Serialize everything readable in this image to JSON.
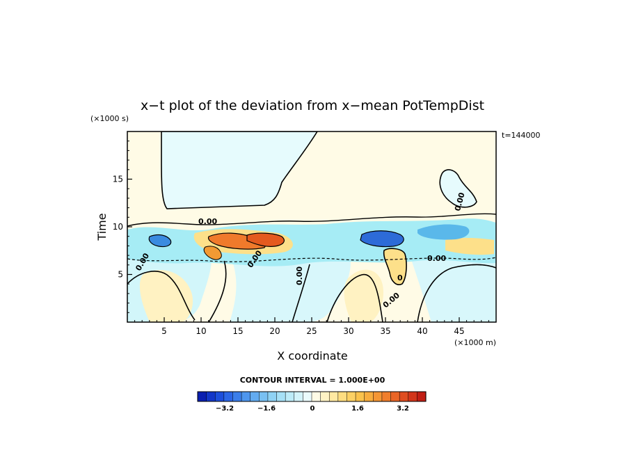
{
  "chart_data": {
    "type": "heatmap",
    "title": "x−t plot of the deviation from x−mean PotTempDist",
    "xlabel": "X coordinate",
    "ylabel": "Time",
    "x_unit": "(×1000 m)",
    "y_unit": "(×1000 s)",
    "time_stamp": "t=144000",
    "xlim": [
      0,
      50
    ],
    "ylim": [
      0,
      20
    ],
    "x_ticks": [
      5,
      10,
      15,
      20,
      25,
      30,
      35,
      40,
      45
    ],
    "y_ticks": [
      5,
      10,
      15
    ],
    "contour_interval_text": "CONTOUR INTERVAL = 1.000E+00",
    "contour_line_labels": [
      "0.00",
      "0.00",
      "0.00",
      "0.00",
      "0.00",
      "0.00",
      "0.00",
      "0"
    ],
    "colorbar": {
      "range": [
        -4.4,
        4.4
      ],
      "step": 0.4,
      "tick_labels": [
        "−3.2",
        "−1.6",
        "0",
        "1.6",
        "3.2"
      ]
    },
    "regions": [
      {
        "name": "upper-left cool region",
        "value": -0.2
      },
      {
        "name": "upper warm region",
        "value": 0.2
      },
      {
        "name": "active band",
        "x": [
          0,
          50
        ],
        "y": [
          6.5,
          11
        ],
        "min": -3.6,
        "max": 3.6
      },
      {
        "name": "warm tongue",
        "x": [
          35,
          39
        ],
        "y": [
          4,
          8
        ],
        "value": 1.0
      }
    ]
  }
}
